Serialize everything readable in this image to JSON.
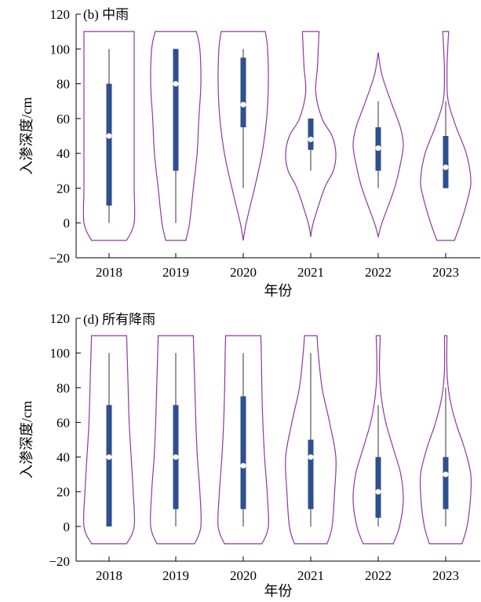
{
  "colors": {
    "violin_outline": "#8a3a9e",
    "box_fill": "#2f4f8f",
    "median_marker": "#ffffff",
    "whisker": "#333333",
    "axis": "#000000"
  },
  "chart_data": [
    {
      "type": "violin",
      "panel_label": "(b) 中雨",
      "xlabel": "年份",
      "ylabel": "入渗深度/cm",
      "categories": [
        "2018",
        "2019",
        "2020",
        "2021",
        "2022",
        "2023"
      ],
      "ylim": [
        -20,
        120
      ],
      "yticks": [
        "−20",
        "0",
        "20",
        "40",
        "60",
        "80",
        "100",
        "120"
      ],
      "grid": false,
      "series": [
        {
          "year": "2018",
          "violin_min": -10,
          "violin_max": 110,
          "whisker": [
            0,
            100
          ],
          "q1": 10,
          "q3": 80,
          "median": 50,
          "profile": [
            [
              -10,
              0.7
            ],
            [
              0,
              1.0
            ],
            [
              20,
              1.0
            ],
            [
              40,
              1.0
            ],
            [
              60,
              1.0
            ],
            [
              80,
              1.0
            ],
            [
              100,
              1.0
            ],
            [
              110,
              1.0
            ]
          ]
        },
        {
          "year": "2019",
          "violin_min": -10,
          "violin_max": 110,
          "whisker": [
            0,
            100
          ],
          "q1": 30,
          "q3": 100,
          "median": 80,
          "profile": [
            [
              -10,
              0.4
            ],
            [
              0,
              0.55
            ],
            [
              20,
              0.7
            ],
            [
              40,
              0.85
            ],
            [
              60,
              0.92
            ],
            [
              80,
              1.0
            ],
            [
              100,
              0.96
            ],
            [
              110,
              0.82
            ]
          ]
        },
        {
          "year": "2020",
          "violin_min": -10,
          "violin_max": 110,
          "whisker": [
            20,
            100
          ],
          "q1": 55,
          "q3": 95,
          "median": 68,
          "profile": [
            [
              -10,
              0.0
            ],
            [
              0,
              0.12
            ],
            [
              20,
              0.45
            ],
            [
              40,
              0.75
            ],
            [
              60,
              0.93
            ],
            [
              80,
              1.0
            ],
            [
              100,
              0.97
            ],
            [
              110,
              0.88
            ]
          ]
        },
        {
          "year": "2021",
          "violin_min": -8,
          "violin_max": 110,
          "whisker": [
            30,
            60
          ],
          "q1": 42,
          "q3": 60,
          "median": 48,
          "profile": [
            [
              -8,
              0.0
            ],
            [
              0,
              0.1
            ],
            [
              20,
              0.55
            ],
            [
              30,
              0.9
            ],
            [
              40,
              1.0
            ],
            [
              50,
              0.85
            ],
            [
              60,
              0.45
            ],
            [
              75,
              0.2
            ],
            [
              90,
              0.27
            ],
            [
              110,
              0.33
            ]
          ]
        },
        {
          "year": "2022",
          "violin_min": -8,
          "violin_max": 98,
          "whisker": [
            20,
            70
          ],
          "q1": 30,
          "q3": 55,
          "median": 43,
          "profile": [
            [
              -8,
              0.0
            ],
            [
              0,
              0.15
            ],
            [
              20,
              0.65
            ],
            [
              35,
              0.9
            ],
            [
              45,
              1.0
            ],
            [
              55,
              0.88
            ],
            [
              70,
              0.5
            ],
            [
              85,
              0.15
            ],
            [
              98,
              0.0
            ]
          ]
        },
        {
          "year": "2023",
          "violin_min": -10,
          "violin_max": 110,
          "whisker": [
            20,
            70
          ],
          "q1": 20,
          "q3": 50,
          "median": 32,
          "profile": [
            [
              -10,
              0.35
            ],
            [
              0,
              0.6
            ],
            [
              15,
              0.9
            ],
            [
              25,
              1.0
            ],
            [
              40,
              0.82
            ],
            [
              55,
              0.42
            ],
            [
              70,
              0.1
            ],
            [
              85,
              0.05
            ],
            [
              100,
              0.08
            ],
            [
              110,
              0.12
            ]
          ]
        }
      ]
    },
    {
      "type": "violin",
      "panel_label": "(d) 所有降雨",
      "xlabel": "年份",
      "ylabel": "入渗深度/cm",
      "categories": [
        "2018",
        "2019",
        "2020",
        "2021",
        "2022",
        "2023"
      ],
      "ylim": [
        -20,
        120
      ],
      "yticks": [
        "−20",
        "0",
        "20",
        "40",
        "60",
        "80",
        "100",
        "120"
      ],
      "grid": false,
      "series": [
        {
          "year": "2018",
          "violin_min": -10,
          "violin_max": 110,
          "whisker": [
            0,
            100
          ],
          "q1": 0,
          "q3": 70,
          "median": 40,
          "profile": [
            [
              -10,
              0.7
            ],
            [
              0,
              1.0
            ],
            [
              20,
              0.96
            ],
            [
              40,
              0.88
            ],
            [
              60,
              0.8
            ],
            [
              80,
              0.76
            ],
            [
              100,
              0.72
            ],
            [
              110,
              0.7
            ]
          ]
        },
        {
          "year": "2019",
          "violin_min": -10,
          "violin_max": 110,
          "whisker": [
            0,
            100
          ],
          "q1": 10,
          "q3": 70,
          "median": 40,
          "profile": [
            [
              -10,
              0.75
            ],
            [
              0,
              1.0
            ],
            [
              20,
              0.96
            ],
            [
              40,
              0.86
            ],
            [
              60,
              0.8
            ],
            [
              80,
              0.76
            ],
            [
              100,
              0.72
            ],
            [
              110,
              0.7
            ]
          ]
        },
        {
          "year": "2020",
          "violin_min": -10,
          "violin_max": 110,
          "whisker": [
            0,
            100
          ],
          "q1": 10,
          "q3": 75,
          "median": 35,
          "profile": [
            [
              -10,
              0.75
            ],
            [
              0,
              1.0
            ],
            [
              20,
              0.95
            ],
            [
              40,
              0.85
            ],
            [
              60,
              0.78
            ],
            [
              80,
              0.74
            ],
            [
              100,
              0.72
            ],
            [
              110,
              0.7
            ]
          ]
        },
        {
          "year": "2021",
          "violin_min": -10,
          "violin_max": 110,
          "whisker": [
            0,
            100
          ],
          "q1": 10,
          "q3": 50,
          "median": 40,
          "profile": [
            [
              -10,
              0.65
            ],
            [
              0,
              0.85
            ],
            [
              20,
              0.95
            ],
            [
              40,
              1.0
            ],
            [
              60,
              0.75
            ],
            [
              80,
              0.45
            ],
            [
              100,
              0.3
            ],
            [
              110,
              0.25
            ]
          ]
        },
        {
          "year": "2022",
          "violin_min": -10,
          "violin_max": 110,
          "whisker": [
            0,
            70
          ],
          "q1": 5,
          "q3": 40,
          "median": 20,
          "profile": [
            [
              -10,
              0.6
            ],
            [
              0,
              0.85
            ],
            [
              15,
              1.0
            ],
            [
              30,
              0.9
            ],
            [
              45,
              0.6
            ],
            [
              60,
              0.3
            ],
            [
              75,
              0.12
            ],
            [
              90,
              0.05
            ],
            [
              110,
              0.08
            ]
          ]
        },
        {
          "year": "2023",
          "violin_min": -10,
          "violin_max": 110,
          "whisker": [
            0,
            80
          ],
          "q1": 10,
          "q3": 40,
          "median": 30,
          "profile": [
            [
              -10,
              0.65
            ],
            [
              0,
              0.85
            ],
            [
              15,
              0.98
            ],
            [
              30,
              1.0
            ],
            [
              45,
              0.75
            ],
            [
              60,
              0.4
            ],
            [
              75,
              0.15
            ],
            [
              90,
              0.05
            ],
            [
              110,
              0.05
            ]
          ]
        }
      ]
    }
  ]
}
